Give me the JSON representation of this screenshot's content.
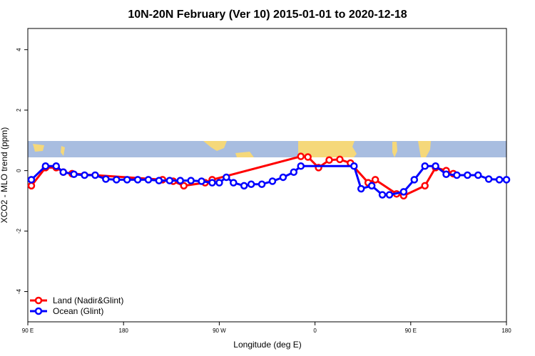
{
  "chart_data": {
    "type": "line",
    "title": "10N-20N February (Ver 10)   2015-01-01 to 2020-12-18",
    "xlabel": "Longitude (deg E)",
    "ylabel": "XCO2 - MLO trend (ppm)",
    "xlim": [
      -90,
      180
    ],
    "ylim": [
      -5.0,
      4.7
    ],
    "x_ticks": [
      {
        "value": -90,
        "label": "90 E"
      },
      {
        "value": -36,
        "label": "180"
      },
      {
        "value": 18,
        "label": "90 W"
      },
      {
        "value": 72,
        "label": "0"
      },
      {
        "value": 126,
        "label": "90 E"
      },
      {
        "value": 180,
        "label": "180"
      }
    ],
    "y_ticks": [
      -4,
      -2,
      0,
      2,
      4
    ],
    "background_map": {
      "lat_range": [
        10,
        20
      ],
      "ocean_color": "#a8bde0",
      "land_color": "#f5d87a"
    },
    "series": [
      {
        "name": "Land (Nadir&Glint)",
        "color": "#ff0000",
        "points": [
          [
            -88,
            -0.5
          ],
          [
            -80,
            0.1
          ],
          [
            -74,
            0.1
          ],
          [
            -70,
            -0.05
          ],
          [
            -65,
            -0.1
          ],
          [
            -14,
            -0.3
          ],
          [
            -8,
            -0.35
          ],
          [
            -2,
            -0.5
          ],
          [
            10,
            -0.4
          ],
          [
            14,
            -0.3
          ],
          [
            64,
            0.47
          ],
          [
            68,
            0.45
          ],
          [
            74,
            0.1
          ],
          [
            80,
            0.35
          ],
          [
            86,
            0.37
          ],
          [
            92,
            0.25
          ],
          [
            102,
            -0.4
          ],
          [
            106,
            -0.3
          ],
          [
            118,
            -0.77
          ],
          [
            122,
            -0.83
          ],
          [
            134,
            -0.5
          ],
          [
            140,
            0.1
          ],
          [
            146,
            0.0
          ],
          [
            150,
            -0.1
          ]
        ]
      },
      {
        "name": "Ocean (Glint)",
        "color": "#0000ff",
        "points": [
          [
            -88,
            -0.3
          ],
          [
            -80,
            0.15
          ],
          [
            -74,
            0.15
          ],
          [
            -70,
            -0.05
          ],
          [
            -64,
            -0.12
          ],
          [
            -58,
            -0.15
          ],
          [
            -52,
            -0.15
          ],
          [
            -46,
            -0.28
          ],
          [
            -40,
            -0.3
          ],
          [
            -34,
            -0.3
          ],
          [
            -28,
            -0.3
          ],
          [
            -22,
            -0.3
          ],
          [
            -16,
            -0.33
          ],
          [
            -10,
            -0.33
          ],
          [
            -4,
            -0.33
          ],
          [
            2,
            -0.33
          ],
          [
            8,
            -0.35
          ],
          [
            14,
            -0.4
          ],
          [
            18,
            -0.4
          ],
          [
            22,
            -0.22
          ],
          [
            26,
            -0.4
          ],
          [
            32,
            -0.5
          ],
          [
            36,
            -0.45
          ],
          [
            42,
            -0.45
          ],
          [
            48,
            -0.35
          ],
          [
            54,
            -0.22
          ],
          [
            60,
            -0.05
          ],
          [
            64,
            0.15
          ],
          [
            94,
            0.15
          ],
          [
            98,
            -0.6
          ],
          [
            104,
            -0.5
          ],
          [
            110,
            -0.8
          ],
          [
            114,
            -0.8
          ],
          [
            122,
            -0.7
          ],
          [
            128,
            -0.3
          ],
          [
            134,
            0.15
          ],
          [
            140,
            0.15
          ],
          [
            146,
            -0.12
          ],
          [
            152,
            -0.15
          ],
          [
            158,
            -0.15
          ],
          [
            164,
            -0.15
          ],
          [
            170,
            -0.28
          ],
          [
            176,
            -0.3
          ],
          [
            180,
            -0.3
          ]
        ]
      }
    ],
    "legend_position": "bottom-left"
  }
}
